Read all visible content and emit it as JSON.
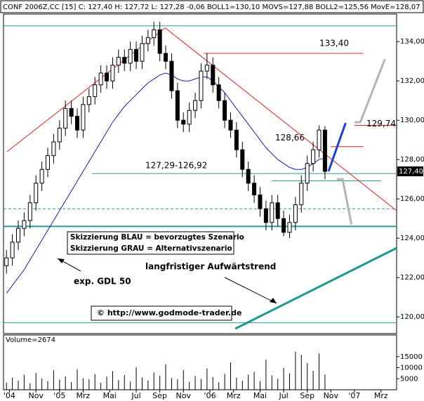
{
  "header": "CONF 2006Z,CC [15] C: 127,40 H: 127,72 L: 127,28 -0,06 BOLL1=130,10 MOVS=127,88 BOLL2=125,56 MovE=128,07",
  "chart_data": {
    "type": "candlestick",
    "x": [
      1,
      3,
      5,
      7,
      9,
      11,
      13,
      15,
      17,
      19,
      21,
      23,
      25,
      27,
      29,
      31,
      33,
      35,
      37,
      39,
      41,
      43,
      45,
      47,
      49,
      51,
      53,
      55,
      57,
      59,
      61,
      63,
      65,
      67,
      69,
      71,
      73,
      75,
      77,
      79,
      81,
      83,
      85,
      87,
      89,
      91,
      93,
      95,
      97,
      99,
      101,
      103,
      105,
      107,
      109
    ],
    "open": [
      122.6,
      123.0,
      123.8,
      124.5,
      124.9,
      125.8,
      126.8,
      127.5,
      128.2,
      128.9,
      129.6,
      130.6,
      130.2,
      129.5,
      130.8,
      131.2,
      131.8,
      132.4,
      132.0,
      132.8,
      133.2,
      132.9,
      133.6,
      133.0,
      133.9,
      134.2,
      134.6,
      133.4,
      133.0,
      131.5,
      130.0,
      129.8,
      130.5,
      131.0,
      132.5,
      132.8,
      131.8,
      131.0,
      130.0,
      129.5,
      128.5,
      127.5,
      126.8,
      126.2,
      125.5,
      124.8,
      125.8,
      125.0,
      124.3,
      124.8,
      125.7,
      126.8,
      127.8,
      128.5,
      129.5
    ],
    "high": [
      123.4,
      124.2,
      124.9,
      125.3,
      126.2,
      127.2,
      127.9,
      128.6,
      129.3,
      130.0,
      131.0,
      131.0,
      130.6,
      131.2,
      131.6,
      132.2,
      132.8,
      132.8,
      133.2,
      133.6,
      133.6,
      134.0,
      134.0,
      134.3,
      134.6,
      135.0,
      135.0,
      133.8,
      133.4,
      131.9,
      130.4,
      130.9,
      131.4,
      132.9,
      133.4,
      133.2,
      132.2,
      131.4,
      130.4,
      129.9,
      128.9,
      127.9,
      127.2,
      126.6,
      125.9,
      126.2,
      126.2,
      125.4,
      125.2,
      126.1,
      127.2,
      128.2,
      128.9,
      129.74,
      129.7
    ],
    "low": [
      122.2,
      122.6,
      123.4,
      124.1,
      124.5,
      125.4,
      126.4,
      127.1,
      127.8,
      128.5,
      129.2,
      129.8,
      129.1,
      129.1,
      130.4,
      130.8,
      131.4,
      131.6,
      131.6,
      132.4,
      132.5,
      132.5,
      132.6,
      132.6,
      133.5,
      133.8,
      133.0,
      132.6,
      131.1,
      129.6,
      129.4,
      129.4,
      130.1,
      130.6,
      132.1,
      131.4,
      130.6,
      129.6,
      129.1,
      128.1,
      127.1,
      126.4,
      125.8,
      125.1,
      124.4,
      124.4,
      124.6,
      124.1,
      124.0,
      124.4,
      125.3,
      126.4,
      127.4,
      128.1,
      127.0
    ],
    "close": [
      123.0,
      123.8,
      124.5,
      124.9,
      125.8,
      126.8,
      127.5,
      128.2,
      128.9,
      129.6,
      130.6,
      130.2,
      129.5,
      130.8,
      131.2,
      131.8,
      132.4,
      132.0,
      132.8,
      133.2,
      132.9,
      133.6,
      133.0,
      133.9,
      134.2,
      134.6,
      133.4,
      133.0,
      131.5,
      130.0,
      129.8,
      130.5,
      131.0,
      132.5,
      132.8,
      131.8,
      131.0,
      130.0,
      129.5,
      128.5,
      127.5,
      126.8,
      126.2,
      125.5,
      124.8,
      125.8,
      125.0,
      124.3,
      124.8,
      125.7,
      126.8,
      127.8,
      128.5,
      129.5,
      127.4
    ],
    "ema": {
      "name": "exp. GDL 50",
      "color": "#1a1aa8",
      "values": [
        121.2,
        121.6,
        122.0,
        122.4,
        122.9,
        123.4,
        123.9,
        124.4,
        124.9,
        125.4,
        125.9,
        126.4,
        126.9,
        127.4,
        127.9,
        128.4,
        128.9,
        129.4,
        129.9,
        130.3,
        130.7,
        131.0,
        131.3,
        131.6,
        131.9,
        132.1,
        132.3,
        132.4,
        132.3,
        132.1,
        132.0,
        132.0,
        132.1,
        132.2,
        132.2,
        132.0,
        131.7,
        131.4,
        131.0,
        130.6,
        130.2,
        129.8,
        129.4,
        129.0,
        128.6,
        128.3,
        128.0,
        127.8,
        127.6,
        127.5,
        127.5,
        127.6,
        127.8,
        128.0,
        128.07
      ]
    },
    "xlim": [
      0,
      133.3
    ],
    "xticks": [
      {
        "value": 2,
        "label": "'04"
      },
      {
        "value": 11,
        "label": "Nov"
      },
      {
        "value": 19,
        "label": "'05"
      },
      {
        "value": 27,
        "label": "Mrz"
      },
      {
        "value": 36,
        "label": "Mai"
      },
      {
        "value": 45,
        "label": "Jul"
      },
      {
        "value": 53,
        "label": "Sep"
      },
      {
        "value": 61,
        "label": "Nov"
      },
      {
        "value": 70,
        "label": "'06"
      },
      {
        "value": 78,
        "label": "Mrz"
      },
      {
        "value": 87,
        "label": "Mai"
      },
      {
        "value": 95,
        "label": "Jul"
      },
      {
        "value": 103,
        "label": "Sep"
      },
      {
        "value": 111,
        "label": "Nov"
      },
      {
        "value": 119,
        "label": "'07"
      },
      {
        "value": 128,
        "label": "Mrz"
      }
    ],
    "ylim": [
      119.4,
      135.4
    ],
    "yticks": [
      {
        "value": 120,
        "label": "120,00"
      },
      {
        "value": 122,
        "label": "122,00"
      },
      {
        "value": 124,
        "label": "124,00"
      },
      {
        "value": 126,
        "label": "126,00"
      },
      {
        "value": 128,
        "label": "128,00"
      },
      {
        "value": 130,
        "label": "130,00"
      },
      {
        "value": 132,
        "label": "132,00"
      },
      {
        "value": 134,
        "label": "134,00"
      }
    ],
    "last": {
      "value": 127.4,
      "label": "127,40"
    },
    "levels": [
      {
        "value": 134.8,
        "x": [
          0,
          133.3
        ],
        "color": "#2a9a9a"
      },
      {
        "value": 125.5,
        "x": [
          0,
          133.3
        ],
        "color": "#2a9a9a",
        "dash": true
      },
      {
        "value": 124.6,
        "x": [
          0,
          133.3
        ],
        "color": "#2a9a9a",
        "width": 2
      },
      {
        "value": 119.7,
        "x": [
          0,
          133.3
        ],
        "color": "#2a9a9a"
      },
      {
        "value": 133.4,
        "label": "133,40",
        "x": [
          68,
          122
        ],
        "color": "#e02020"
      },
      {
        "value": 129.74,
        "label": "129,74",
        "x": [
          119,
          133.3
        ],
        "color": "#e02020"
      },
      {
        "value": 128.66,
        "label": "128,66",
        "x": [
          111,
          122
        ],
        "color": "#e02020"
      }
    ],
    "zone": {
      "label": "127,29-126,92",
      "values": [
        127.29,
        126.92
      ],
      "x": [
        [
          30,
          133.3
        ],
        [
          91,
          128
        ]
      ],
      "color": "#2a9a9a"
    },
    "trendlines": [
      {
        "x": [
          1.2,
          54.8
        ],
        "y": [
          128.4,
          134.7
        ],
        "color": "#e02020"
      },
      {
        "x": [
          54.8,
          133.3
        ],
        "y": [
          134.7,
          125.4
        ],
        "color": "#e02020"
      },
      {
        "name": "langfristiger Aufwärtstrend",
        "x": [
          78.6,
          133.3
        ],
        "y": [
          119.4,
          123.5
        ],
        "color": "#1a9a8a"
      }
    ],
    "scenarios": [
      {
        "name": "Skizzierung BLAU = bevorzugtes Szenario",
        "color": "#1a3ee0",
        "x": [
          110.2,
          116
        ],
        "y": [
          127.4,
          129.86
        ]
      },
      {
        "name": "Skizzierung GRAU = Alternativszenario",
        "color": "#b4b4b4",
        "x": [
          113,
          115,
          118,
          null,
          119,
          121,
          129.3
        ],
        "y": [
          127.0,
          127.0,
          124.7,
          null,
          129.9,
          129.9,
          133.1
        ]
      }
    ],
    "source": "© http://www.godmode-trader.de",
    "volume_title": "Volume=2674",
    "volume": [
      3200,
      5400,
      4100,
      6800,
      2900,
      7600,
      5100,
      3900,
      8800,
      4600,
      6100,
      3500,
      9200,
      5200,
      4800,
      7100,
      3100,
      5900,
      8400,
      4400,
      6600,
      3700,
      10200,
      5600,
      4200,
      7800,
      6300,
      11500,
      5300,
      4700,
      8900,
      3600,
      6200,
      4900,
      9600,
      5800,
      3300,
      7200,
      12400,
      5500,
      4100,
      6900,
      8100,
      3800,
      13600,
      6400,
      5000,
      9800,
      7400,
      17200,
      15800,
      12100,
      8600,
      16400,
      6900
    ],
    "vlim": [
      0,
      20000
    ],
    "vticks": [
      5000,
      10000,
      15000
    ]
  }
}
